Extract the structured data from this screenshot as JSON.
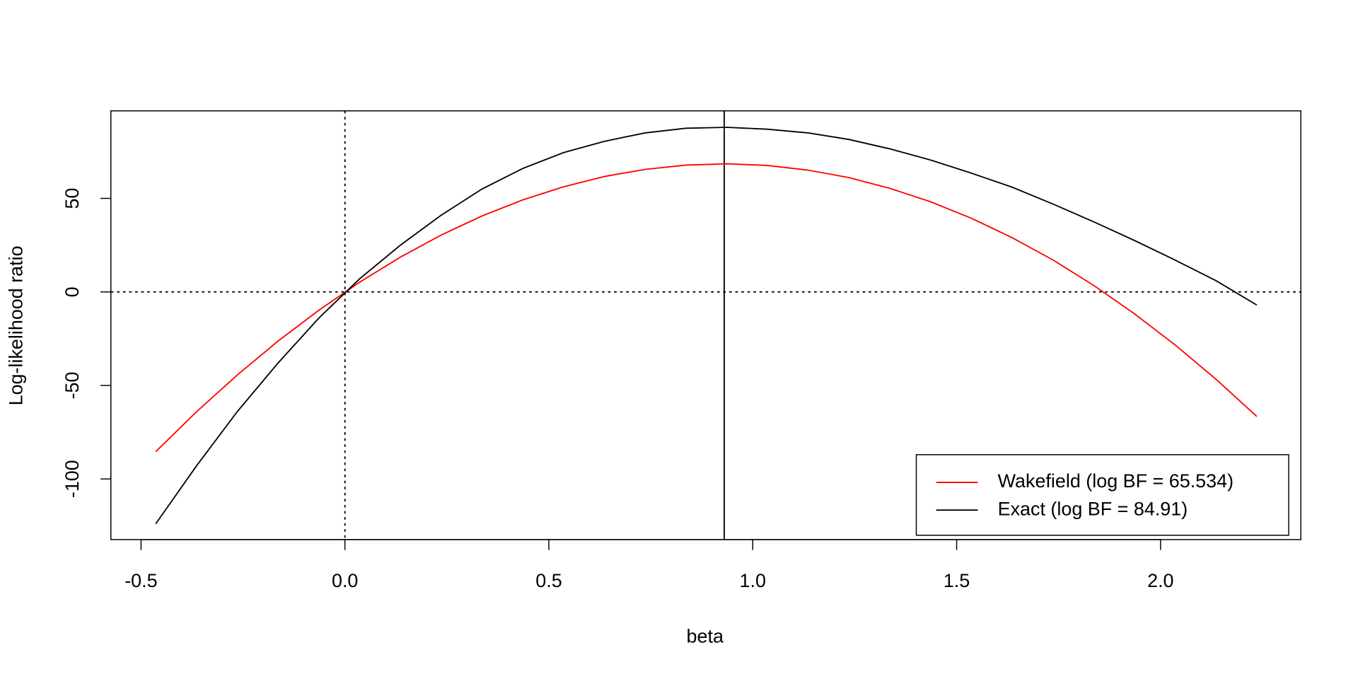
{
  "chart_data": {
    "type": "line",
    "x_label": "beta",
    "y_label": "Log-likelihood ratio",
    "x": [
      -0.464,
      -0.364,
      -0.264,
      -0.164,
      -0.064,
      0.036,
      0.136,
      0.236,
      0.336,
      0.436,
      0.536,
      0.636,
      0.736,
      0.836,
      0.936,
      1.036,
      1.136,
      1.236,
      1.336,
      1.436,
      1.536,
      1.636,
      1.736,
      1.836,
      1.936,
      2.036,
      2.136,
      2.236
    ],
    "series": [
      {
        "name": "Wakefield (log BF = 65.534)",
        "color": "#ff0000",
        "values": [
          -85.4,
          -64.1,
          -44.4,
          -26.3,
          -9.8,
          5.2,
          18.6,
          30.4,
          40.6,
          49.2,
          56.2,
          61.7,
          65.5,
          67.8,
          68.5,
          67.6,
          65.1,
          61.1,
          55.4,
          48.2,
          39.4,
          29.0,
          17.1,
          3.5,
          -11.7,
          -28.4,
          -46.7,
          -66.6
        ]
      },
      {
        "name": "Exact (log BF = 84.91)",
        "color": "#000000",
        "values": [
          -124,
          -93,
          -64,
          -38,
          -14,
          7,
          25,
          41,
          55,
          66,
          74.5,
          80.5,
          85,
          87.5,
          88,
          87,
          85,
          81.5,
          76.5,
          70.5,
          63.5,
          56,
          47,
          37.5,
          27.5,
          17,
          6,
          -7
        ]
      }
    ],
    "reference_lines": [
      {
        "axis": "x",
        "value": 0,
        "style": "dotted"
      },
      {
        "axis": "y",
        "value": 0,
        "style": "dotted"
      },
      {
        "axis": "x",
        "value": 0.93,
        "style": "solid"
      }
    ],
    "xlim": [
      -0.574,
      2.344
    ],
    "ylim": [
      -132.4,
      96.8
    ],
    "xticks": [
      {
        "value": -0.5,
        "label": "-0.5"
      },
      {
        "value": 0,
        "label": "0.0"
      },
      0.5,
      {
        "value": 1,
        "label": "1.0"
      },
      1.5,
      {
        "value": 2,
        "label": "2.0"
      }
    ],
    "yticks": [
      -100,
      -50,
      0,
      50
    ],
    "grid": false,
    "legend_position": "bottom-right"
  }
}
